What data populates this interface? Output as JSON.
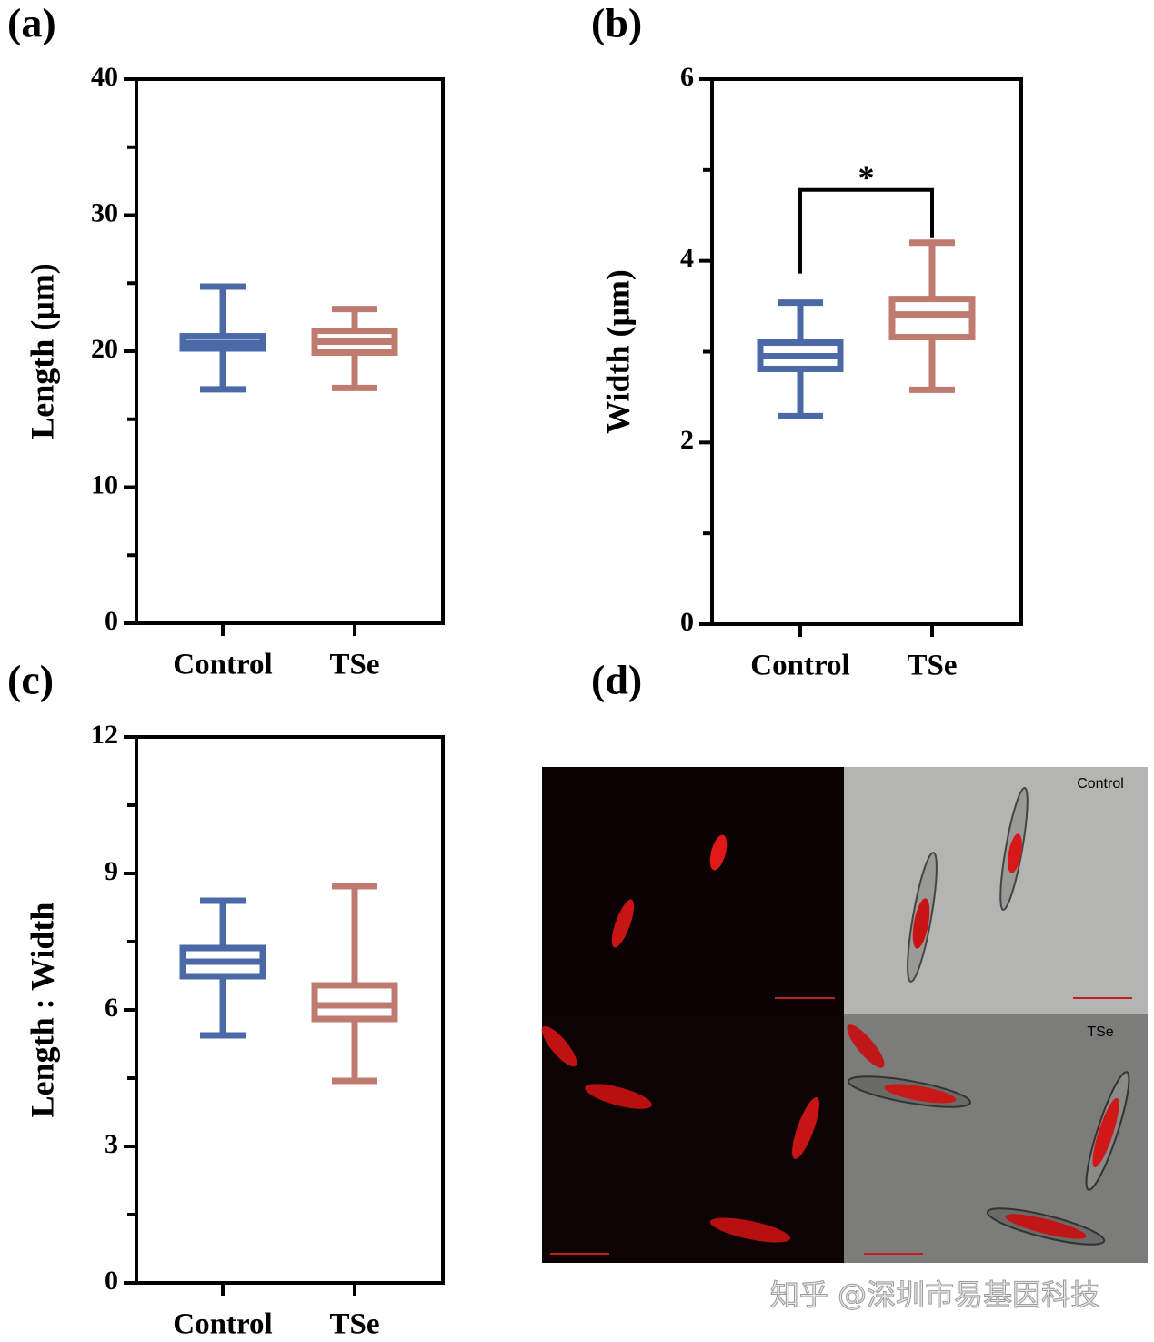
{
  "chart_data": [
    {
      "type": "box",
      "panel": "(a)",
      "ylabel": "Length (μm)",
      "categories": [
        "Control",
        "TSe"
      ],
      "min": [
        17.2,
        17.3
      ],
      "q1": [
        20.2,
        19.9
      ],
      "median": [
        20.6,
        20.7
      ],
      "q3": [
        21.1,
        21.5
      ],
      "max": [
        24.75,
        23.1
      ],
      "colors": [
        "#4a69a6",
        "#bf7b70"
      ],
      "ylim": [
        0,
        40
      ],
      "yticks": [
        0,
        10,
        20,
        30,
        40
      ],
      "yticks_minor": [
        5,
        15,
        25,
        35
      ]
    },
    {
      "type": "box",
      "panel": "(b)",
      "ylabel": "Width (μm)",
      "categories": [
        "Control",
        "TSe"
      ],
      "min": [
        2.29,
        2.58
      ],
      "q1": [
        2.81,
        3.16
      ],
      "median": [
        2.95,
        3.41
      ],
      "q3": [
        3.1,
        3.58
      ],
      "max": [
        3.54,
        4.2
      ],
      "colors": [
        "#4a69a6",
        "#bf7b70"
      ],
      "ylim": [
        0,
        6
      ],
      "yticks": [
        0,
        2,
        4,
        6
      ],
      "yticks_minor": [
        1,
        3,
        5
      ],
      "annotation": "*"
    },
    {
      "type": "box",
      "panel": "(c)",
      "ylabel": "Length : Width",
      "categories": [
        "Control",
        "TSe"
      ],
      "min": [
        5.44,
        4.44
      ],
      "q1": [
        6.74,
        5.8
      ],
      "median": [
        7.06,
        6.1
      ],
      "q3": [
        7.36,
        6.54
      ],
      "max": [
        8.4,
        8.72
      ],
      "colors": [
        "#4a69a6",
        "#bf7b70"
      ],
      "ylim": [
        0,
        12
      ],
      "yticks": [
        0,
        3,
        6,
        9,
        12
      ],
      "yticks_minor": [
        1.5,
        4.5,
        7.5,
        10.5
      ]
    }
  ],
  "image_panel": {
    "label": "(d)",
    "top_label": "Control",
    "bottom_label": "TSe"
  },
  "watermark": "知乎 @深圳市易基因科技"
}
